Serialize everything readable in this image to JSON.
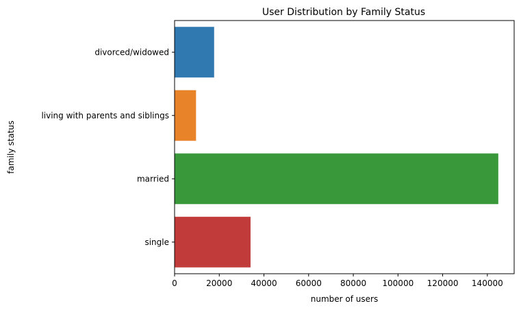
{
  "chart_data": {
    "type": "bar",
    "orientation": "horizontal",
    "title": "User Distribution by Family Status",
    "xlabel": "number of users",
    "ylabel": "family status",
    "categories": [
      "divorced/widowed",
      "living with parents and siblings",
      "married",
      "single"
    ],
    "values": [
      17700,
      9600,
      144900,
      34000
    ],
    "colors": [
      "#2f78b0",
      "#e8832a",
      "#38983a",
      "#c23b3b"
    ],
    "xlim": [
      0,
      152000
    ],
    "xticks": [
      0,
      20000,
      40000,
      60000,
      80000,
      100000,
      120000,
      140000
    ],
    "grid": false,
    "legend": "none"
  }
}
